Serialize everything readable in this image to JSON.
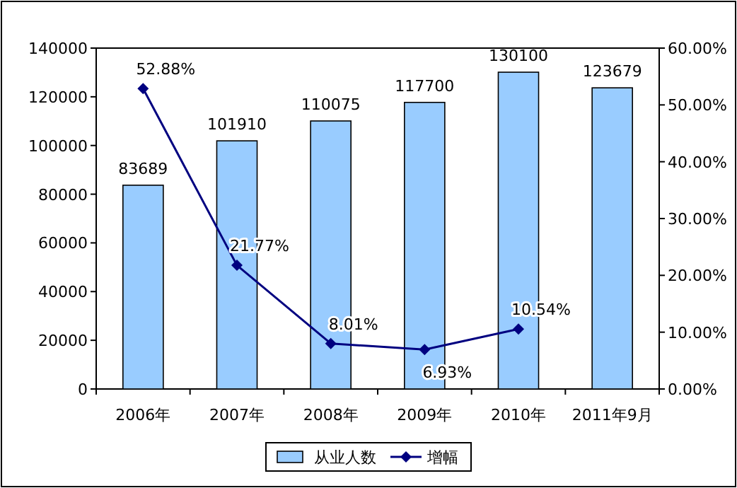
{
  "chart_data": {
    "type": "bar",
    "categories": [
      "2006年",
      "2007年",
      "2008年",
      "2009年",
      "2010年",
      "2011年9月"
    ],
    "series": [
      {
        "name": "从业人数",
        "color": "#99ccff",
        "values": [
          83689,
          101910,
          110075,
          117700,
          130100,
          123679
        ],
        "value_labels": [
          "83689",
          "101910",
          "110075",
          "117700",
          "130100",
          "123679"
        ]
      },
      {
        "name": "增幅",
        "type": "line",
        "axis": "y2",
        "color": "#000080",
        "marker": "diamond",
        "values": [
          52.88,
          21.77,
          8.01,
          6.93,
          10.54,
          null
        ],
        "value_labels": [
          "52.88%",
          "21.77%",
          "8.01%",
          "6.93%",
          "10.54%",
          null
        ]
      }
    ],
    "ylim": [
      0,
      140000
    ],
    "yticks": [
      0,
      20000,
      40000,
      60000,
      80000,
      100000,
      120000,
      140000
    ],
    "y2lim": [
      0,
      60
    ],
    "y2ticks": [
      {
        "value": 0,
        "label": "0.00%"
      },
      {
        "value": 10,
        "label": "10.00%"
      },
      {
        "value": 20,
        "label": "20.00%"
      },
      {
        "value": 30,
        "label": "30.00%"
      },
      {
        "value": 40,
        "label": "40.00%"
      },
      {
        "value": 50,
        "label": "50.00%"
      },
      {
        "value": 60,
        "label": "60.00%"
      }
    ],
    "legend": "bottom"
  }
}
